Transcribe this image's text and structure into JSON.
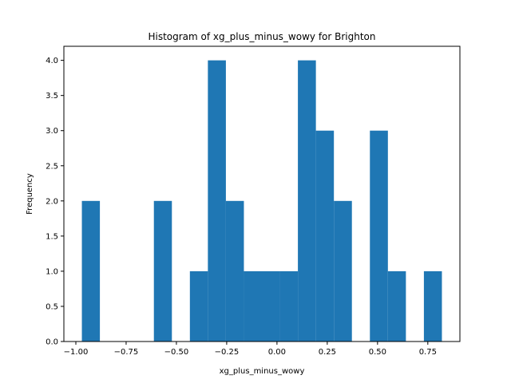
{
  "chart_data": {
    "type": "histogram",
    "title": "Histogram of xg_plus_minus_wowy for Brighton",
    "xlabel": "xg_plus_minus_wowy",
    "ylabel": "Frequency",
    "bin_edges": [
      -0.97,
      -0.8805,
      -0.791,
      -0.7015,
      -0.612,
      -0.5225,
      -0.433,
      -0.3435,
      -0.254,
      -0.1645,
      -0.075,
      0.0145,
      0.104,
      0.1935,
      0.283,
      0.3725,
      0.462,
      0.5515,
      0.641,
      0.7305,
      0.82
    ],
    "counts": [
      2,
      0,
      0,
      0,
      2,
      0,
      1,
      4,
      2,
      1,
      1,
      1,
      4,
      3,
      2,
      0,
      3,
      1,
      0,
      1
    ],
    "xlim": [
      -1.0595,
      0.9095
    ],
    "ylim": [
      0,
      4.2
    ],
    "xticks": [
      -1.0,
      -0.75,
      -0.5,
      -0.25,
      0.0,
      0.25,
      0.5,
      0.75
    ],
    "xtick_labels": [
      "−1.00",
      "−0.75",
      "−0.50",
      "−0.25",
      "0.00",
      "0.25",
      "0.50",
      "0.75"
    ],
    "yticks": [
      0.0,
      0.5,
      1.0,
      1.5,
      2.0,
      2.5,
      3.0,
      3.5,
      4.0
    ],
    "ytick_labels": [
      "0.0",
      "0.5",
      "1.0",
      "1.5",
      "2.0",
      "2.5",
      "3.0",
      "3.5",
      "4.0"
    ],
    "bar_color": "#1f77b4",
    "grid": false,
    "legend": false
  }
}
